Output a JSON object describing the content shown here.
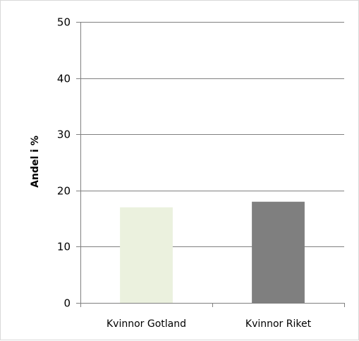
{
  "chart_data": {
    "type": "bar",
    "categories": [
      "Kvinnor Gotland",
      "Kvinnor Riket"
    ],
    "values": [
      17,
      18
    ],
    "ylabel": "Andel i %",
    "xlabel": "",
    "ylim": [
      0,
      50
    ],
    "yticks": [
      0,
      10,
      20,
      30,
      40,
      50
    ],
    "grid": true,
    "colors": [
      "#ebf1de",
      "#7f7f7f"
    ],
    "grid_color": "#808080",
    "axis_color": "#808080"
  }
}
